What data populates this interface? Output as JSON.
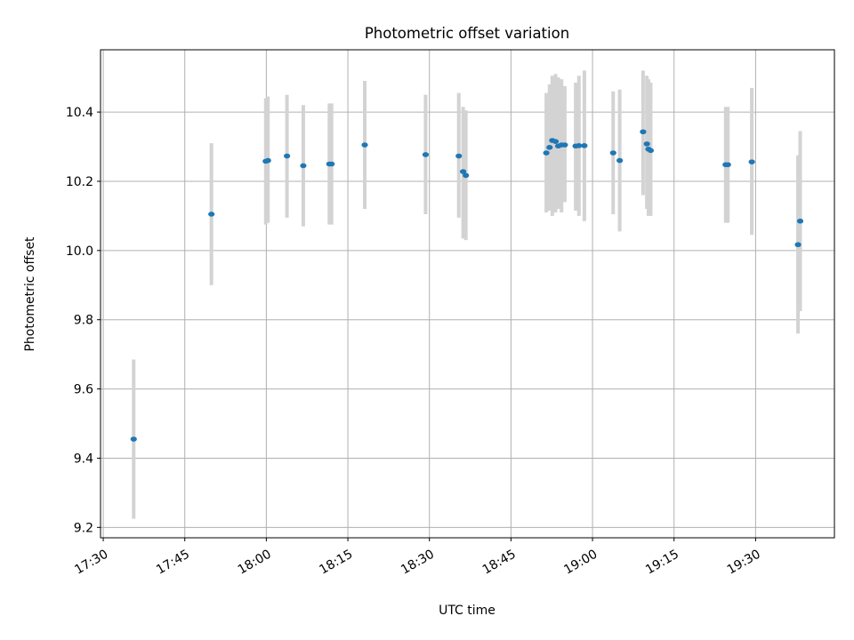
{
  "chart_data": {
    "type": "scatter",
    "title": "Photometric offset variation",
    "xlabel": "UTC time",
    "ylabel": "Photometric offset",
    "x_unit": "minutes since 17:30 UTC",
    "xlim": [
      -0.5,
      134.5
    ],
    "ylim": [
      9.17,
      10.58
    ],
    "grid": true,
    "x_ticks": [
      {
        "value": 0,
        "label": "17:30"
      },
      {
        "value": 15,
        "label": "17:45"
      },
      {
        "value": 30,
        "label": "18:00"
      },
      {
        "value": 45,
        "label": "18:15"
      },
      {
        "value": 60,
        "label": "18:30"
      },
      {
        "value": 75,
        "label": "18:45"
      },
      {
        "value": 90,
        "label": "19:00"
      },
      {
        "value": 105,
        "label": "19:15"
      },
      {
        "value": 120,
        "label": "19:30"
      }
    ],
    "y_ticks": [
      {
        "value": 9.2,
        "label": "9.2"
      },
      {
        "value": 9.4,
        "label": "9.4"
      },
      {
        "value": 9.6,
        "label": "9.6"
      },
      {
        "value": 9.8,
        "label": "9.8"
      },
      {
        "value": 10.0,
        "label": "10.0"
      },
      {
        "value": 10.2,
        "label": "10.2"
      },
      {
        "value": 10.4,
        "label": "10.4"
      }
    ],
    "colors": {
      "marker": "#1f77b4",
      "errorbar": "#d3d3d3",
      "grid": "#b0b0b0"
    },
    "points": [
      {
        "x": 5.6,
        "y": 9.455,
        "lo": 9.225,
        "hi": 9.685
      },
      {
        "x": 19.9,
        "y": 10.105,
        "lo": 9.9,
        "hi": 10.31
      },
      {
        "x": 29.9,
        "y": 10.258,
        "lo": 10.075,
        "hi": 10.44
      },
      {
        "x": 30.3,
        "y": 10.26,
        "lo": 10.08,
        "hi": 10.445
      },
      {
        "x": 33.8,
        "y": 10.273,
        "lo": 10.095,
        "hi": 10.45
      },
      {
        "x": 36.8,
        "y": 10.245,
        "lo": 10.07,
        "hi": 10.42
      },
      {
        "x": 41.6,
        "y": 10.25,
        "lo": 10.075,
        "hi": 10.425
      },
      {
        "x": 42.0,
        "y": 10.25,
        "lo": 10.075,
        "hi": 10.425
      },
      {
        "x": 48.1,
        "y": 10.305,
        "lo": 10.12,
        "hi": 10.49
      },
      {
        "x": 59.3,
        "y": 10.277,
        "lo": 10.105,
        "hi": 10.45
      },
      {
        "x": 65.4,
        "y": 10.273,
        "lo": 10.095,
        "hi": 10.455
      },
      {
        "x": 66.2,
        "y": 10.228,
        "lo": 10.035,
        "hi": 10.415
      },
      {
        "x": 66.7,
        "y": 10.217,
        "lo": 10.03,
        "hi": 10.405
      },
      {
        "x": 81.5,
        "y": 10.282,
        "lo": 10.11,
        "hi": 10.455
      },
      {
        "x": 82.1,
        "y": 10.298,
        "lo": 10.115,
        "hi": 10.48
      },
      {
        "x": 82.6,
        "y": 10.318,
        "lo": 10.1,
        "hi": 10.505
      },
      {
        "x": 83.2,
        "y": 10.315,
        "lo": 10.11,
        "hi": 10.51
      },
      {
        "x": 83.7,
        "y": 10.302,
        "lo": 10.12,
        "hi": 10.5
      },
      {
        "x": 84.3,
        "y": 10.305,
        "lo": 10.11,
        "hi": 10.495
      },
      {
        "x": 84.9,
        "y": 10.305,
        "lo": 10.14,
        "hi": 10.475
      },
      {
        "x": 86.9,
        "y": 10.302,
        "lo": 10.115,
        "hi": 10.485
      },
      {
        "x": 87.5,
        "y": 10.303,
        "lo": 10.1,
        "hi": 10.505
      },
      {
        "x": 88.5,
        "y": 10.303,
        "lo": 10.085,
        "hi": 10.52
      },
      {
        "x": 93.8,
        "y": 10.282,
        "lo": 10.105,
        "hi": 10.46
      },
      {
        "x": 95.0,
        "y": 10.26,
        "lo": 10.055,
        "hi": 10.465
      },
      {
        "x": 99.3,
        "y": 10.343,
        "lo": 10.16,
        "hi": 10.52
      },
      {
        "x": 100.0,
        "y": 10.308,
        "lo": 10.12,
        "hi": 10.505
      },
      {
        "x": 100.3,
        "y": 10.293,
        "lo": 10.1,
        "hi": 10.495
      },
      {
        "x": 100.7,
        "y": 10.289,
        "lo": 10.1,
        "hi": 10.485
      },
      {
        "x": 114.5,
        "y": 10.248,
        "lo": 10.08,
        "hi": 10.415
      },
      {
        "x": 114.9,
        "y": 10.248,
        "lo": 10.08,
        "hi": 10.415
      },
      {
        "x": 119.3,
        "y": 10.256,
        "lo": 10.045,
        "hi": 10.47
      },
      {
        "x": 127.8,
        "y": 10.017,
        "lo": 9.76,
        "hi": 10.275
      },
      {
        "x": 128.2,
        "y": 10.085,
        "lo": 9.825,
        "hi": 10.345
      }
    ]
  }
}
